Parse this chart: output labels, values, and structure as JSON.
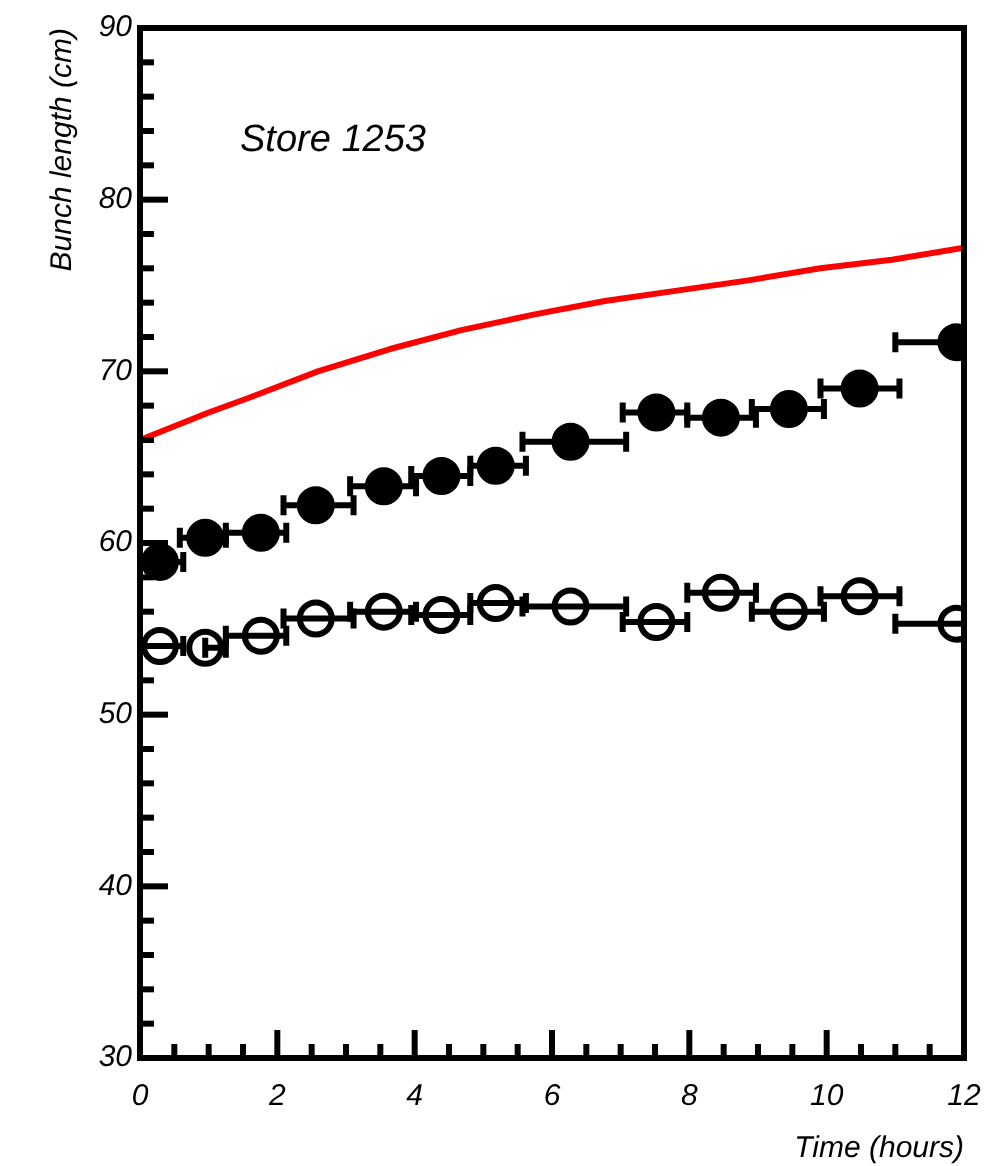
{
  "chart_data": {
    "type": "scatter",
    "title": "Store 1253",
    "xlabel": "Time (hours)",
    "ylabel": "Bunch length (cm)",
    "xlim": [
      0,
      12
    ],
    "ylim": [
      30,
      90
    ],
    "xticks": [
      0,
      {
        "value": 0.5,
        "label": null
      },
      {
        "value": 1,
        "label": null
      },
      {
        "value": 1.5,
        "label": null
      },
      2,
      {
        "value": 2.5,
        "label": null
      },
      {
        "value": 3,
        "label": null
      },
      {
        "value": 3.5,
        "label": null
      },
      4,
      {
        "value": 4.5,
        "label": null
      },
      {
        "value": 5,
        "label": null
      },
      {
        "value": 5.5,
        "label": null
      },
      6,
      {
        "value": 6.5,
        "label": null
      },
      {
        "value": 7,
        "label": null
      },
      {
        "value": 7.5,
        "label": null
      },
      8,
      {
        "value": 8.5,
        "label": null
      },
      {
        "value": 9,
        "label": null
      },
      {
        "value": 9.5,
        "label": null
      },
      10,
      {
        "value": 10.5,
        "label": null
      },
      {
        "value": 11,
        "label": null
      },
      {
        "value": 11.5,
        "label": null
      },
      12
    ],
    "yticks": [
      30,
      {
        "value": 32,
        "label": null
      },
      {
        "value": 34,
        "label": null
      },
      {
        "value": 36,
        "label": null
      },
      {
        "value": 38,
        "label": null
      },
      40,
      {
        "value": 42,
        "label": null
      },
      {
        "value": 44,
        "label": null
      },
      {
        "value": 46,
        "label": null
      },
      {
        "value": 48,
        "label": null
      },
      50,
      {
        "value": 52,
        "label": null
      },
      {
        "value": 54,
        "label": null
      },
      {
        "value": 56,
        "label": null
      },
      {
        "value": 58,
        "label": null
      },
      60,
      {
        "value": 62,
        "label": null
      },
      {
        "value": 64,
        "label": null
      },
      {
        "value": 66,
        "label": null
      },
      {
        "value": 68,
        "label": null
      },
      70,
      {
        "value": 72,
        "label": null
      },
      {
        "value": 74,
        "label": null
      },
      {
        "value": 76,
        "label": null
      },
      {
        "value": 78,
        "label": null
      },
      80,
      {
        "value": 82,
        "label": null
      },
      {
        "value": 84,
        "label": null
      },
      {
        "value": 86,
        "label": null
      },
      {
        "value": 88,
        "label": null
      },
      90
    ],
    "grid": false,
    "legend": false,
    "marker": "circle",
    "series": [
      {
        "type": "line",
        "color": "#ff0000",
        "marker": "none",
        "x": [
          0,
          0.5,
          1.0,
          1.55,
          2.59,
          3.64,
          4.68,
          5.73,
          6.77,
          7.82,
          8.86,
          9.91,
          10.95,
          12
        ],
        "values": [
          66.0,
          66.8,
          67.6,
          68.4,
          70.0,
          71.3,
          72.4,
          73.3,
          74.1,
          74.7,
          75.3,
          76.0,
          76.5,
          77.2
        ]
      },
      {
        "color": "#000000",
        "x": [
          0.29,
          0.95,
          1.76,
          2.56,
          3.55,
          4.39,
          5.18,
          6.27,
          7.52,
          8.46,
          9.45,
          10.48,
          11.89
        ],
        "values": [
          58.9,
          60.3,
          60.6,
          62.2,
          63.3,
          63.9,
          64.5,
          65.9,
          67.6,
          67.3,
          67.8,
          69.0,
          71.7
        ],
        "xerrors": [
          [
            0,
            0.63
          ],
          [
            0.58,
            1.25
          ],
          [
            1.25,
            2.13
          ],
          [
            2.09,
            3.11
          ],
          [
            3.06,
            4.02
          ],
          [
            3.95,
            4.81
          ],
          [
            4.81,
            5.62
          ],
          [
            5.57,
            7.08
          ],
          [
            7.03,
            7.97
          ],
          [
            7.97,
            8.97
          ],
          [
            8.91,
            9.96
          ],
          [
            9.91,
            11.06
          ],
          [
            11.0,
            12
          ]
        ]
      },
      {
        "color": "#000000",
        "x": [
          0.29,
          0.95,
          1.76,
          2.56,
          3.55,
          4.39,
          5.18,
          6.27,
          7.52,
          8.46,
          9.45,
          10.48,
          11.89
        ],
        "values": [
          54.0,
          53.9,
          54.6,
          55.6,
          56.0,
          55.8,
          56.5,
          56.3,
          55.4,
          57.1,
          56.0,
          56.9,
          55.3
        ],
        "xerrors": [
          [
            0,
            0.63
          ],
          [
            0.95,
            1.25
          ],
          [
            1.25,
            2.13
          ],
          [
            2.09,
            3.11
          ],
          [
            3.06,
            4.02
          ],
          [
            3.95,
            4.81
          ],
          [
            4.81,
            5.62
          ],
          [
            5.57,
            7.08
          ],
          [
            7.03,
            7.97
          ],
          [
            7.97,
            8.97
          ],
          [
            8.91,
            9.96
          ],
          [
            9.91,
            11.06
          ],
          [
            11.0,
            12
          ]
        ]
      }
    ]
  }
}
